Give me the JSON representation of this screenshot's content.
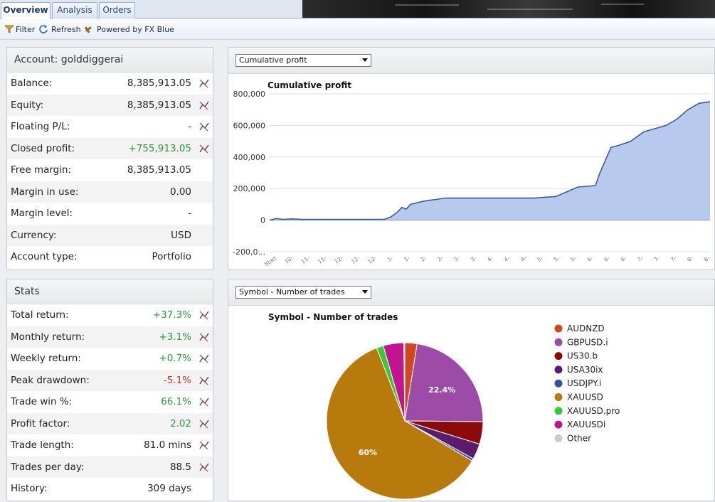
{
  "tabs": [
    {
      "label": "Overview",
      "active": true
    },
    {
      "label": "Analysis",
      "active": false
    },
    {
      "label": "Orders",
      "active": false
    }
  ],
  "toolbar": {
    "filter_label": "Filter",
    "refresh_label": "Refresh",
    "powered_label": "Powered by FX Blue"
  },
  "account": {
    "title": "Account: golddiggerai",
    "rows": [
      {
        "label": "Balance:",
        "value": "8,385,913.05",
        "tone": "",
        "chart": true
      },
      {
        "label": "Equity:",
        "value": "8,385,913.05",
        "tone": "",
        "chart": true
      },
      {
        "label": "Floating P/L:",
        "value": "-",
        "tone": "",
        "chart": true
      },
      {
        "label": "Closed profit:",
        "value": "+755,913.05",
        "tone": "pos",
        "chart": true
      },
      {
        "label": "Free margin:",
        "value": "8,385,913.05",
        "tone": "",
        "chart": false
      },
      {
        "label": "Margin in use:",
        "value": "0.00",
        "tone": "",
        "chart": false
      },
      {
        "label": "Margin level:",
        "value": "-",
        "tone": "",
        "chart": false
      },
      {
        "label": "Currency:",
        "value": "USD",
        "tone": "",
        "chart": false
      },
      {
        "label": "Account type:",
        "value": "Portfolio",
        "tone": "",
        "chart": false
      }
    ]
  },
  "stats": {
    "title": "Stats",
    "rows": [
      {
        "label": "Total return:",
        "value": "+37.3%",
        "tone": "pos",
        "chart": true
      },
      {
        "label": "Monthly return:",
        "value": "+3.1%",
        "tone": "pos",
        "chart": true
      },
      {
        "label": "Weekly return:",
        "value": "+0.7%",
        "tone": "pos",
        "chart": true
      },
      {
        "label": "Peak drawdown:",
        "value": "-5.1%",
        "tone": "neg",
        "chart": true
      },
      {
        "label": "Trade win %:",
        "value": "66.1%",
        "tone": "pos",
        "chart": true
      },
      {
        "label": "Profit factor:",
        "value": "2.02",
        "tone": "pos",
        "chart": true
      },
      {
        "label": "Trade length:",
        "value": "81.0 mins",
        "tone": "",
        "chart": true
      },
      {
        "label": "Trades per day:",
        "value": "88.5",
        "tone": "",
        "chart": true
      },
      {
        "label": "History:",
        "value": "309 days",
        "tone": "",
        "chart": false
      }
    ]
  },
  "profit_panel": {
    "select_value": "Cumulative profit"
  },
  "symbol_panel": {
    "select_value": "Symbol - Number of trades"
  },
  "colors": {
    "accent": "#25467a",
    "positive": "#2a9a3a",
    "negative": "#c0392b",
    "area_fill": "#b8c9ee",
    "area_line": "#3d5a9c"
  },
  "chart_data": [
    {
      "type": "area",
      "title": "Cumulative profit",
      "ylim": [
        -200000,
        800000
      ],
      "y_ticks": [
        "800,000",
        "600,000",
        "400,000",
        "200,000",
        "0",
        "-200,0..."
      ],
      "y_tick_values": [
        800000,
        600000,
        400000,
        200000,
        0,
        -200000
      ],
      "x_ticks": [
        "Start",
        "10-",
        "11-",
        "11-",
        "12-",
        "12-",
        "12-",
        "1-",
        "1-",
        "2-",
        "2-",
        "3-",
        "3-",
        "4-",
        "4-",
        "4-",
        "5-",
        "5-",
        "5-",
        "6-",
        "6-",
        "6-",
        "7-",
        "7-",
        "7-",
        "8-",
        "8-"
      ],
      "x": [
        0,
        3,
        6,
        10,
        15,
        20,
        28,
        35,
        45,
        52,
        55,
        58,
        60,
        62,
        64,
        67,
        70,
        72,
        75,
        80,
        85,
        90,
        95,
        100,
        110,
        120,
        130,
        140,
        145,
        148,
        150,
        155,
        160,
        164,
        167,
        170,
        175,
        180,
        185,
        190,
        195,
        200
      ],
      "y": [
        0,
        10000,
        5000,
        8000,
        5000,
        5000,
        5000,
        5000,
        5000,
        5000,
        20000,
        50000,
        80000,
        70000,
        100000,
        110000,
        120000,
        125000,
        130000,
        140000,
        140000,
        140000,
        140000,
        140000,
        140000,
        140000,
        150000,
        210000,
        215000,
        220000,
        300000,
        460000,
        480000,
        500000,
        530000,
        560000,
        580000,
        600000,
        640000,
        700000,
        740000,
        750000
      ],
      "grid": true
    },
    {
      "type": "pie",
      "title": "Symbol - Number of trades",
      "legend_position": "right",
      "slices": [
        {
          "label": "AUDNZD",
          "value": 2.5,
          "color": "#d3471c",
          "show_label": ""
        },
        {
          "label": "GBPUSD.i",
          "value": 22.4,
          "color": "#9c4ba7",
          "show_label": "22.4%"
        },
        {
          "label": "US30.b",
          "value": 4.6,
          "color": "#8b0a0a",
          "show_label": ""
        },
        {
          "label": "USA30ix",
          "value": 3.2,
          "color": "#5a1d6b",
          "show_label": ""
        },
        {
          "label": "USDJPY.i",
          "value": 0.5,
          "color": "#3a4fa8",
          "show_label": ""
        },
        {
          "label": "XAUUSD",
          "value": 60,
          "color": "#b87a0c",
          "show_label": "60%"
        },
        {
          "label": "XAUUSD.pro",
          "value": 1.4,
          "color": "#33cc33",
          "show_label": ""
        },
        {
          "label": "XAUUSDi",
          "value": 4.2,
          "color": "#c0158f",
          "show_label": ""
        },
        {
          "label": "Other",
          "value": 0.2,
          "color": "#cccccc",
          "show_label": ""
        }
      ]
    }
  ]
}
